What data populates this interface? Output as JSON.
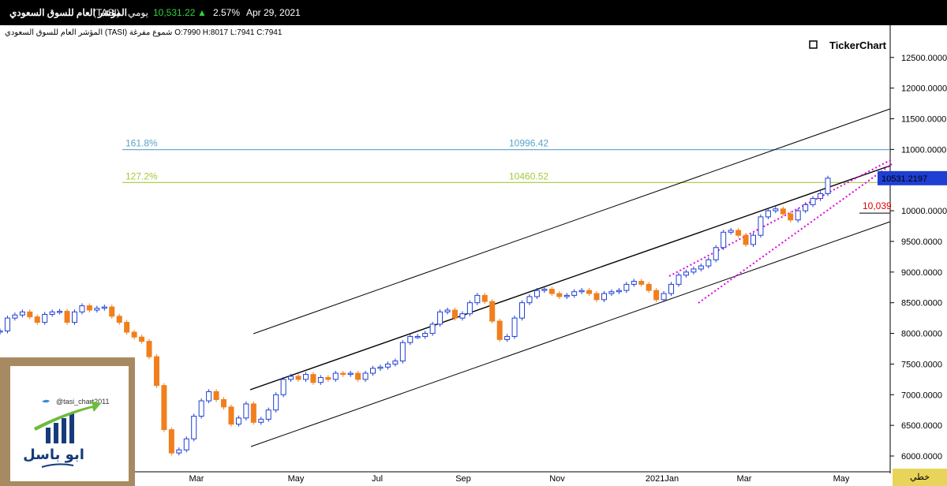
{
  "header": {
    "title": "المؤشر العام للسوق السعودي",
    "symbol": "(TASI)",
    "period": "يومي",
    "last_price": "10,531.22",
    "change_pct": "2.57%",
    "date": "Apr 29, 2021",
    "up_arrow": "▲"
  },
  "info": {
    "text": "المؤشر العام للسوق السعودي (TASI) شموع مفرغة O:7990 H:8017 L:7941 C:7941"
  },
  "brand": {
    "name": "TickerChart"
  },
  "colors": {
    "up": "#1f3fd4",
    "down": "#f07f1d",
    "fib161": "#5aa3c8",
    "fib127": "#a5c93a",
    "channel": "#000000",
    "wedge": "#e000e0",
    "price_tag": "#1f3fd4",
    "marker_label": "#e00000"
  },
  "chart_data": {
    "type": "candlestick",
    "x_axis_labels": [
      "Mar",
      "May",
      "Jul",
      "Sep",
      "Nov",
      "2021Jan",
      "Mar",
      "May"
    ],
    "y_axis_labels": [
      "12500.0000",
      "12000.0000",
      "11500.0000",
      "11000.0000",
      "10500.0000",
      "10000.0000",
      "9500.0000",
      "9000.0000",
      "8500.0000",
      "8000.0000",
      "7500.0000",
      "7000.0000",
      "6500.0000",
      "6000.0000"
    ],
    "ylim": [
      5980,
      12700
    ],
    "last_price_tag": "10531.2197",
    "level_marker": "10,039",
    "fib_levels": [
      {
        "pct": "161.8%",
        "value": 10996.42,
        "label": "10996.42"
      },
      {
        "pct": "127.2%",
        "value": 10460.52,
        "label": "10460.52"
      }
    ],
    "close_path": [
      8040,
      8250,
      8300,
      8350,
      8270,
      8180,
      8310,
      8350,
      8360,
      8180,
      8350,
      8450,
      8380,
      8410,
      8430,
      8280,
      8180,
      8020,
      7940,
      7870,
      7620,
      7150,
      6430,
      6050,
      6100,
      6280,
      6650,
      6900,
      7050,
      6920,
      6800,
      6520,
      6620,
      6850,
      6550,
      6600,
      6750,
      7000,
      7250,
      7300,
      7250,
      7330,
      7200,
      7280,
      7250,
      7350,
      7330,
      7350,
      7250,
      7350,
      7430,
      7450,
      7500,
      7550,
      7850,
      7950,
      7950,
      8000,
      8150,
      8350,
      8380,
      8250,
      8320,
      8500,
      8620,
      8520,
      8200,
      7900,
      7950,
      8250,
      8500,
      8600,
      8700,
      8720,
      8650,
      8600,
      8620,
      8680,
      8700,
      8650,
      8550,
      8650,
      8680,
      8700,
      8800,
      8850,
      8800,
      8700,
      8550,
      8650,
      8800,
      8950,
      9000,
      9050,
      9100,
      9200,
      9400,
      9650,
      9680,
      9600,
      9450,
      9600,
      9900,
      10000,
      10030,
      9950,
      9850,
      10000,
      10100,
      10200,
      10280,
      10531
    ],
    "left_channel": "rising channel plus rising wedge, with Fibonacci extension levels"
  },
  "watermark": {
    "handle": "@tasi_chart2011",
    "name": "ابو باسل"
  },
  "bottom_tag": "خطي"
}
